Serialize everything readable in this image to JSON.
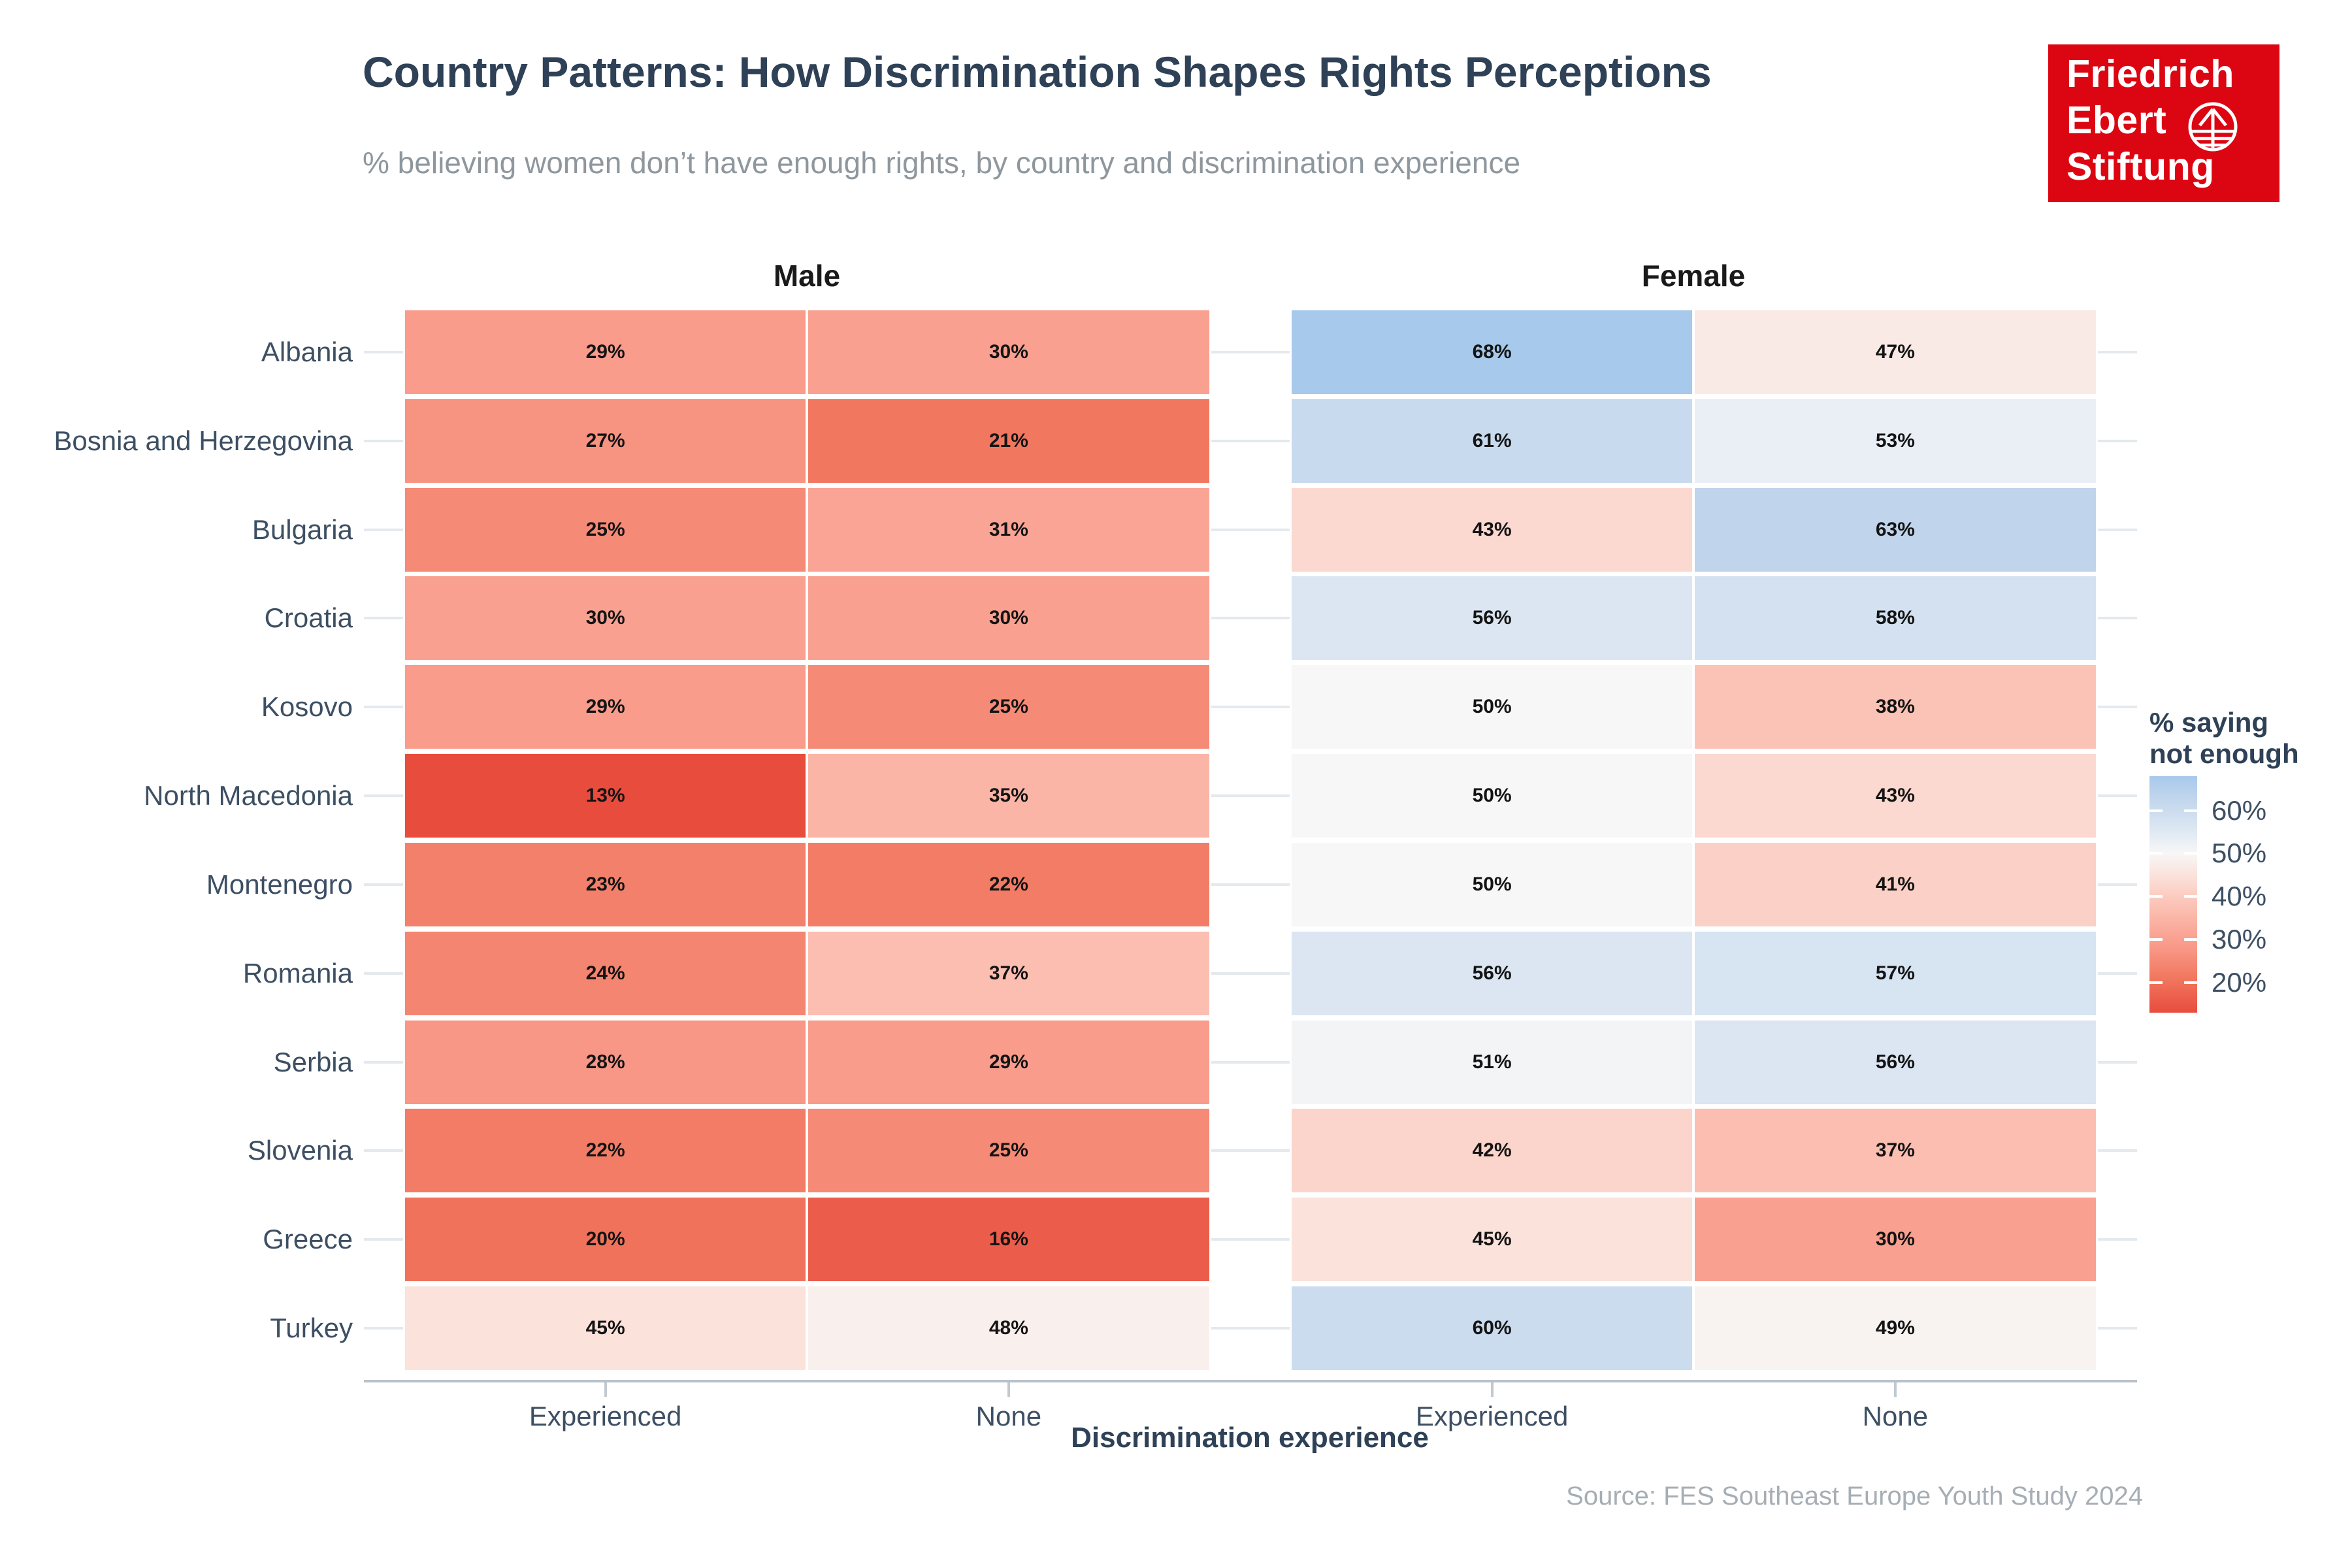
{
  "header": {
    "title": "Country Patterns: How Discrimination Shapes Rights Perceptions",
    "subtitle": "% believing women don’t have enough rights, by country and discrimination experience"
  },
  "logo": {
    "lines": [
      "Friedrich",
      "Ebert",
      "Stiftung"
    ],
    "background": "#DC0612",
    "icon": "globe-arrow-icon"
  },
  "axis": {
    "x_title": "Discrimination experience",
    "x_categories": [
      "Experienced",
      "None"
    ]
  },
  "legend": {
    "title_lines": [
      "% saying",
      "not enough"
    ],
    "ticks": [
      {
        "label": "60%",
        "value": 60
      },
      {
        "label": "50%",
        "value": 50
      },
      {
        "label": "40%",
        "value": 40
      },
      {
        "label": "30%",
        "value": 30
      },
      {
        "label": "20%",
        "value": 20
      }
    ],
    "range": {
      "min": 13,
      "max": 68
    }
  },
  "source": "Source: FES Southeast Europe Youth Study 2024",
  "chart_data": {
    "type": "heatmap",
    "facets": [
      "Male",
      "Female"
    ],
    "x": [
      "Experienced",
      "None"
    ],
    "rows": [
      "Albania",
      "Bosnia and Herzegovina",
      "Bulgaria",
      "Croatia",
      "Kosovo",
      "North Macedonia",
      "Montenegro",
      "Romania",
      "Serbia",
      "Slovenia",
      "Greece",
      "Turkey"
    ],
    "series": [
      {
        "name": "Male",
        "values": [
          [
            29,
            30
          ],
          [
            27,
            21
          ],
          [
            25,
            31
          ],
          [
            30,
            30
          ],
          [
            29,
            25
          ],
          [
            13,
            35
          ],
          [
            23,
            22
          ],
          [
            24,
            37
          ],
          [
            28,
            29
          ],
          [
            22,
            25
          ],
          [
            20,
            16
          ],
          [
            45,
            48
          ]
        ]
      },
      {
        "name": "Female",
        "values": [
          [
            68,
            47
          ],
          [
            61,
            53
          ],
          [
            43,
            63
          ],
          [
            56,
            58
          ],
          [
            50,
            38
          ],
          [
            50,
            43
          ],
          [
            50,
            41
          ],
          [
            56,
            57
          ],
          [
            51,
            56
          ],
          [
            42,
            37
          ],
          [
            45,
            30
          ],
          [
            60,
            49
          ]
        ]
      }
    ],
    "value_suffix": "%",
    "color_scale": {
      "type": "diverging",
      "midpoint": 50,
      "stops": [
        [
          13,
          "#E84C3D"
        ],
        [
          21,
          "#F1775F"
        ],
        [
          29,
          "#F99C8C"
        ],
        [
          35,
          "#FBB5A6"
        ],
        [
          45,
          "#FBE2DB"
        ],
        [
          50,
          "#F7F7F7"
        ],
        [
          56,
          "#DBE6F2"
        ],
        [
          63,
          "#C0D5EC"
        ],
        [
          68,
          "#A7C9EB"
        ]
      ]
    }
  }
}
